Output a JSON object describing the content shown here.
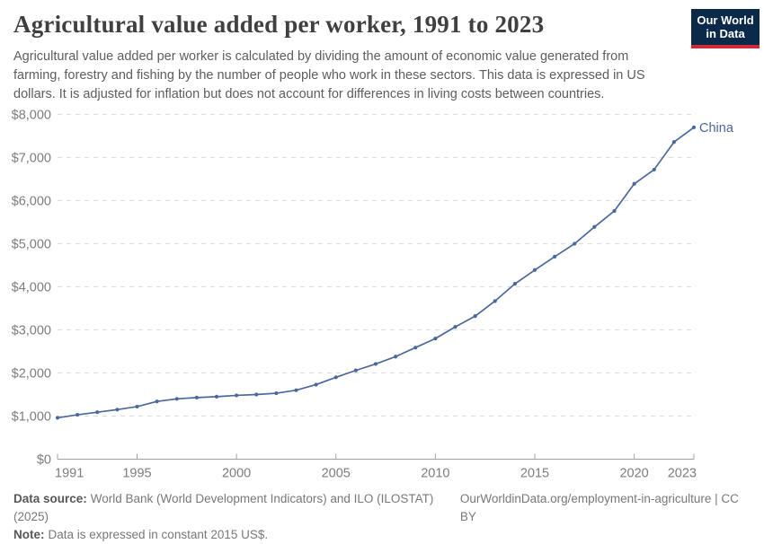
{
  "logo": {
    "line1": "Our World",
    "line2": "in Data",
    "bg_color": "#0B2A4A",
    "accent_color": "#CC2A36"
  },
  "chart_data": {
    "type": "line",
    "title": "Agricultural value added per worker, 1991 to 2023",
    "subtitle": "Agricultural value added per worker is calculated by dividing the amount of economic value generated from farming, forestry and fishing by the number of people who work in these sectors. This data is expressed in US dollars. It is adjusted for inflation but does not account for differences in living costs between countries.",
    "x": [
      1991,
      1992,
      1993,
      1994,
      1995,
      1996,
      1997,
      1998,
      1999,
      2000,
      2001,
      2002,
      2003,
      2004,
      2005,
      2006,
      2007,
      2008,
      2009,
      2010,
      2011,
      2012,
      2013,
      2014,
      2015,
      2016,
      2017,
      2018,
      2019,
      2020,
      2021,
      2022,
      2023
    ],
    "series": [
      {
        "name": "China",
        "color": "#4A689D",
        "values": [
          960,
          1030,
          1090,
          1150,
          1220,
          1340,
          1400,
          1430,
          1450,
          1480,
          1500,
          1530,
          1600,
          1730,
          1900,
          2060,
          2210,
          2380,
          2590,
          2800,
          3070,
          3320,
          3670,
          4070,
          4390,
          4700,
          5000,
          5390,
          5760,
          6390,
          6720,
          7360,
          7700
        ]
      }
    ],
    "xlim": [
      1991,
      2023
    ],
    "ylim": [
      0,
      8000
    ],
    "x_ticks": [
      1991,
      1995,
      2000,
      2005,
      2010,
      2015,
      2020,
      2023
    ],
    "y_tick_step": 1000,
    "y_tick_prefix": "$",
    "grid": "horizontal-dashed",
    "legend_position": "end-of-line-label",
    "axis_color": "#a0a0a0",
    "grid_color": "#dcdcdc",
    "tick_label_color": "#7d7d7d"
  },
  "footer": {
    "source_label": "Data source:",
    "source_text": "World Bank (World Development Indicators) and ILO (ILOSTAT) (2025)",
    "link_text": "OurWorldinData.org/employment-in-agriculture | CC BY",
    "note_label": "Note:",
    "note_text": "Data is expressed in constant 2015 US$."
  }
}
